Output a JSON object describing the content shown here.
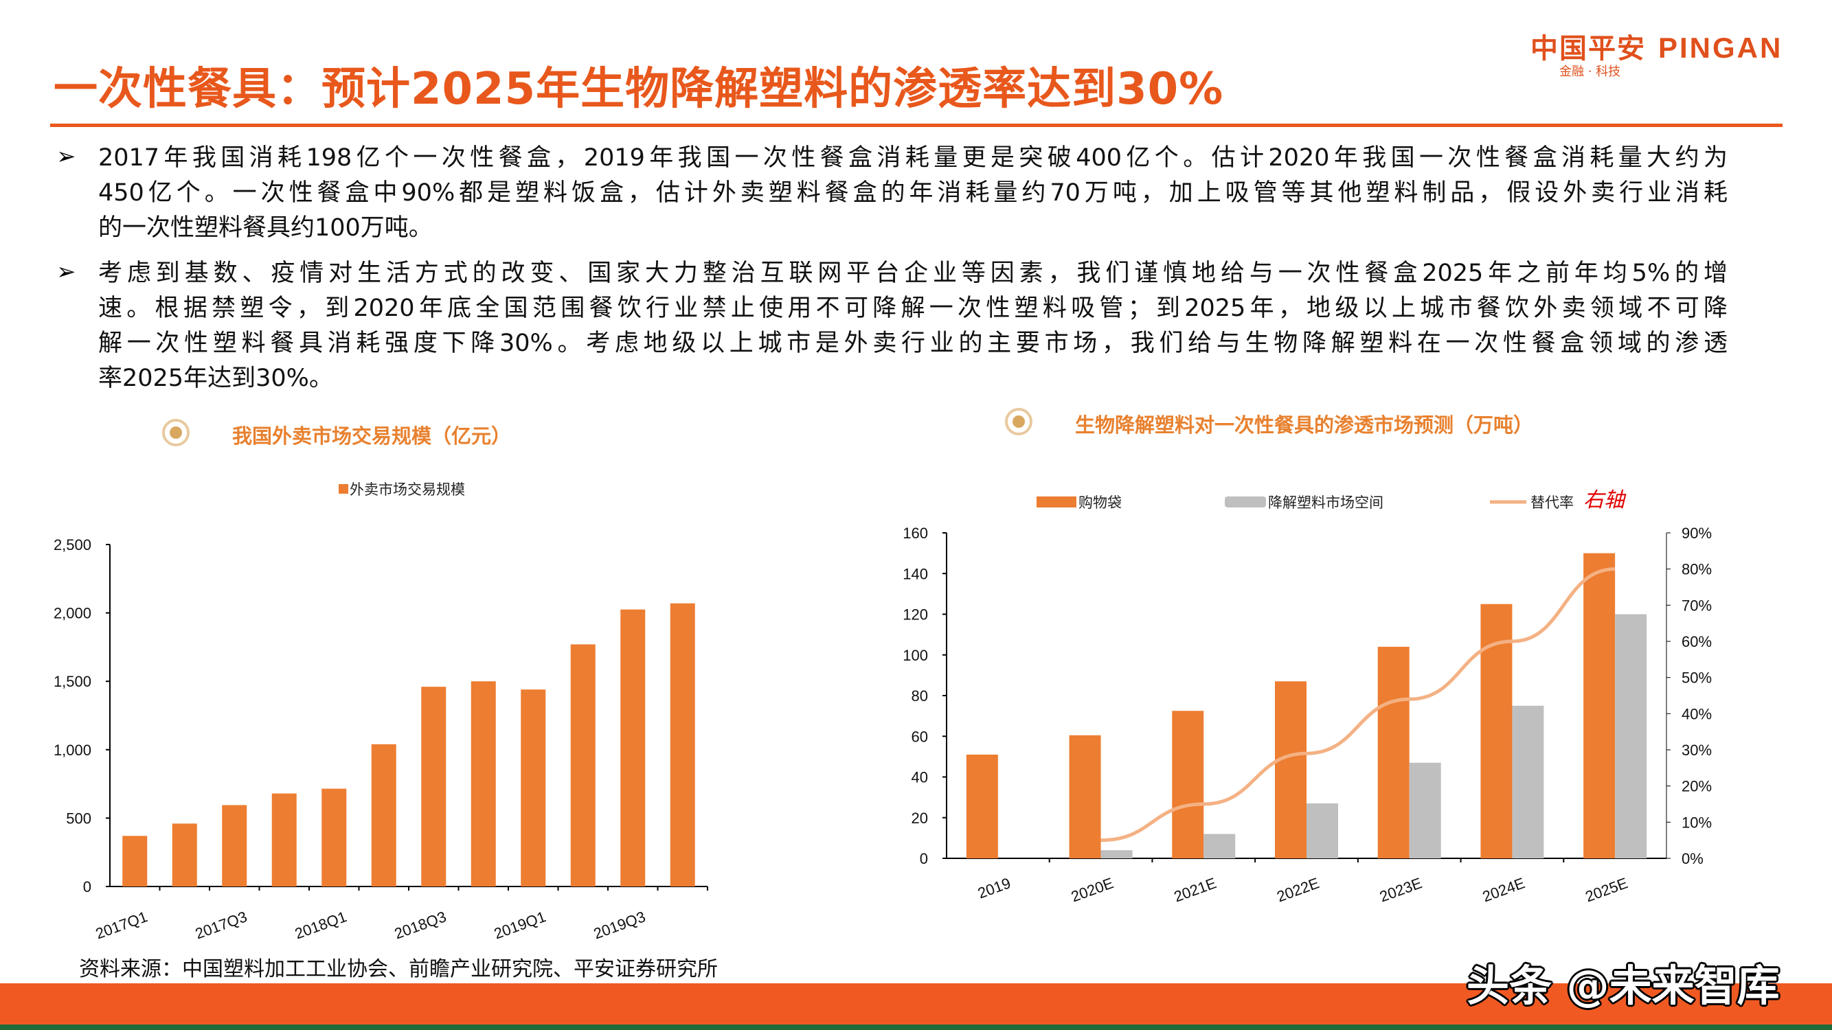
{
  "title": "一次性餐具：预计2025年生物降解塑料的渗透率达到30%",
  "logo": {
    "cn": "中国平安",
    "en": "PINGAN",
    "sub": "金融 · 科技"
  },
  "bullets": [
    {
      "icon": "arrow-bullet-icon",
      "lines": [
        "2017年我国消耗198亿个一次性餐盒，2019年我国一次性餐盒消耗量更是突破400亿个。估计2020年我国一次性餐盒消耗量大约为",
        "450亿个。一次性餐盒中90%都是塑料饭盒，估计外卖塑料餐盒的年消耗量约70万吨，加上吸管等其他塑料制品，假设外卖行业消耗",
        "的一次性塑料餐具约100万吨。"
      ]
    },
    {
      "icon": "arrow-bullet-icon",
      "lines": [
        "考虑到基数、疫情对生活方式的改变、国家大力整治互联网平台企业等因素，我们谨慎地给与一次性餐盒2025年之前年均5%的增",
        "速。根据禁塑令，到2020年底全国范围餐饮行业禁止使用不可降解一次性塑料吸管；到2025年，地级以上城市餐饮外卖领域不可降",
        "解一次性塑料餐具消耗强度下降30%。考虑地级以上城市是外卖行业的主要市场，我们给与生物降解塑料在一次性餐盒领域的渗透",
        "率2025年达到30%。"
      ]
    }
  ],
  "bullet_glyph": "➢",
  "sections": {
    "left": "我国外卖市场交易规模（亿元）",
    "right": "生物降解塑料对一次性餐具的渗透市场预测（万吨）"
  },
  "chart_data": [
    {
      "type": "bar",
      "title": "我国外卖市场交易规模（亿元）",
      "categories": [
        "2017Q1",
        "2017Q2",
        "2017Q3",
        "2017Q4",
        "2018Q1",
        "2018Q2",
        "2018Q3",
        "2018Q4",
        "2019Q1",
        "2019Q2",
        "2019Q3",
        "2019Q4"
      ],
      "tick_labels": [
        "2017Q1",
        "",
        "2017Q3",
        "",
        "2018Q1",
        "",
        "2018Q3",
        "",
        "2019Q1",
        "",
        "2019Q3",
        ""
      ],
      "series": [
        {
          "name": "外卖市场交易规模",
          "color": "#ed7d31",
          "values": [
            370,
            460,
            595,
            680,
            715,
            1040,
            1460,
            1500,
            1440,
            1770,
            2025,
            2070
          ]
        }
      ],
      "ylim": [
        0,
        2500
      ],
      "yticks": [
        "0",
        "500",
        "1,000",
        "1,500",
        "2,000",
        "2,500"
      ],
      "legend": "top",
      "grid": false
    },
    {
      "type": "bar+line",
      "title": "生物降解塑料对一次性餐具的渗透市场预测（万吨）",
      "categories": [
        "2019",
        "2020E",
        "2021E",
        "2022E",
        "2023E",
        "2024E",
        "2025E"
      ],
      "series": [
        {
          "name": "购物袋",
          "color": "#ed7d31",
          "axis": "left",
          "values": [
            51,
            60.5,
            72.5,
            87,
            104,
            125,
            150
          ]
        },
        {
          "name": "降解塑料市场空间",
          "color": "#bfbfbf",
          "axis": "left",
          "values": [
            0,
            4,
            12,
            27,
            47,
            75,
            120
          ]
        },
        {
          "name": "替代率",
          "color": "#f4b183",
          "axis": "right",
          "type": "line",
          "values": [
            null,
            5,
            15,
            29,
            44,
            60,
            80
          ]
        }
      ],
      "right_axis_note": "右轴",
      "right_axis_note_color": "#e00000",
      "ylim": [
        0,
        160
      ],
      "yticks": [
        "0",
        "20",
        "40",
        "60",
        "80",
        "100",
        "120",
        "140",
        "160"
      ],
      "y2lim": [
        0,
        90
      ],
      "y2ticks": [
        "0%",
        "10%",
        "20%",
        "30%",
        "40%",
        "50%",
        "60%",
        "70%",
        "80%",
        "90%"
      ],
      "legend": "top",
      "grid": false
    }
  ],
  "source": "资料来源：中国塑料加工工业协会、前瞻产业研究院、平安证券研究所",
  "watermark": "头条 @未来智库",
  "colors": {
    "brand": "#e8581c",
    "footer": "#f05a22",
    "footer_green": "#1f6b3a"
  }
}
